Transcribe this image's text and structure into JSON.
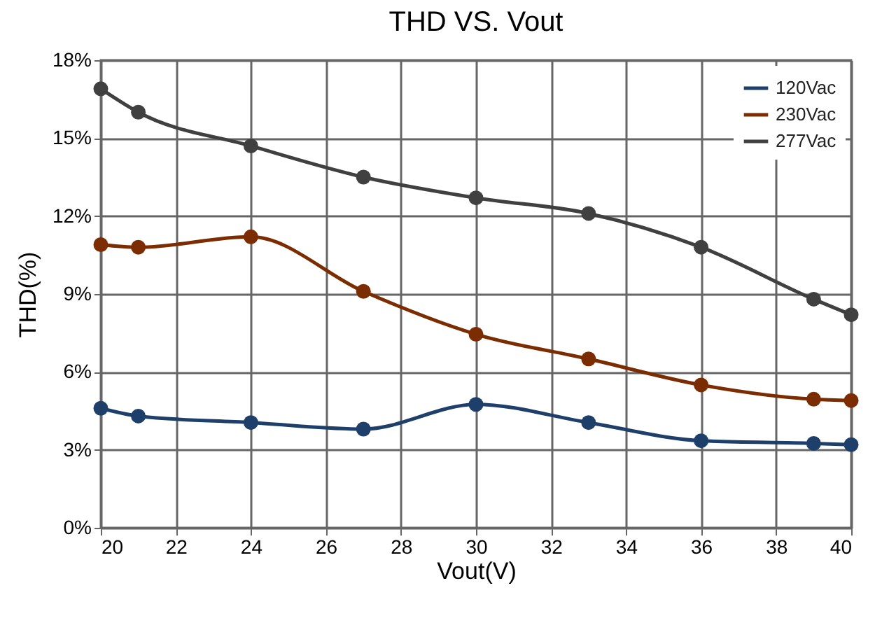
{
  "chart_data": {
    "type": "line",
    "title": "THD VS. Vout",
    "xlabel": "Vout(V)",
    "ylabel": "THD(%)",
    "x": [
      20,
      21,
      24,
      27,
      30,
      33,
      36,
      39,
      40
    ],
    "series": [
      {
        "name": "120Vac",
        "color": "#1f3f6b",
        "values": [
          4.6,
          4.3,
          4.05,
          3.8,
          4.75,
          4.05,
          3.35,
          3.25,
          3.2
        ]
      },
      {
        "name": "230Vac",
        "color": "#7b2c00",
        "values": [
          10.9,
          10.8,
          11.2,
          9.1,
          7.45,
          6.5,
          5.5,
          4.95,
          4.9
        ]
      },
      {
        "name": "277Vac",
        "color": "#404040",
        "values": [
          16.9,
          16.0,
          14.7,
          13.5,
          12.7,
          12.1,
          10.8,
          8.8,
          8.2
        ]
      }
    ],
    "xlim": [
      20,
      40
    ],
    "xticks": [
      20,
      22,
      24,
      26,
      28,
      30,
      32,
      34,
      36,
      38,
      40
    ],
    "ylim": [
      0,
      18
    ],
    "yticks": [
      {
        "value": 0,
        "label": "0%"
      },
      {
        "value": 3,
        "label": "3%"
      },
      {
        "value": 6,
        "label": "6%"
      },
      {
        "value": 9,
        "label": "9%"
      },
      {
        "value": 12,
        "label": "12%"
      },
      {
        "value": 15,
        "label": "15%"
      },
      {
        "value": 18,
        "label": "18%"
      }
    ],
    "grid": true,
    "legend": "top right",
    "marker": "circle",
    "line_style": "solid"
  }
}
